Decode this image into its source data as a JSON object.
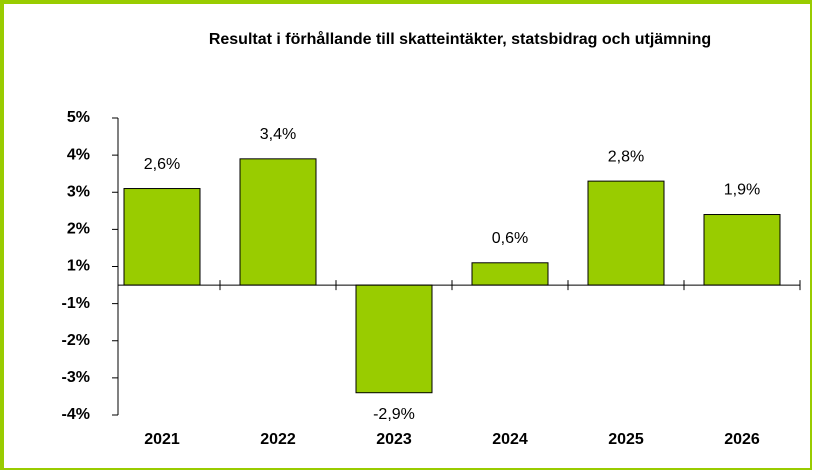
{
  "chart_data": {
    "type": "bar",
    "title": "Resultat i förhållande till skatteintäkter, statsbidrag och utjämning",
    "categories": [
      "2021",
      "2022",
      "2023",
      "2024",
      "2025",
      "2026"
    ],
    "values": [
      2.6,
      3.4,
      -2.9,
      0.6,
      2.8,
      1.9
    ],
    "value_labels": [
      "2,6%",
      "3,4%",
      "-2,9%",
      "0,6%",
      "2,8%",
      "1,9%"
    ],
    "color": "#99cc00",
    "ylim": [
      -3.5,
      4.5
    ],
    "yticks": [
      {
        "value": 4.5,
        "label": "5%"
      },
      {
        "value": 3.5,
        "label": "4%"
      },
      {
        "value": 2.5,
        "label": "3%"
      },
      {
        "value": 1.5,
        "label": "2%"
      },
      {
        "value": 0.5,
        "label": "1%"
      },
      {
        "value": -0.5,
        "label": "-1%"
      },
      {
        "value": -1.5,
        "label": "-2%"
      },
      {
        "value": -2.5,
        "label": "-3%"
      },
      {
        "value": -3.5,
        "label": "-4%"
      }
    ],
    "grid": false
  }
}
